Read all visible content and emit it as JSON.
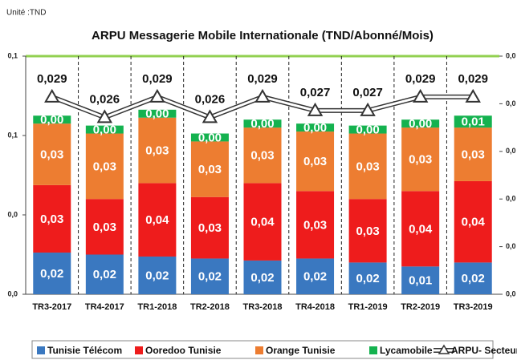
{
  "chart_data": {
    "type": "bar",
    "stacked": true,
    "unit_note": "Unité :TND",
    "title": "ARPU Messagerie Mobile Internationale (TND/Abonné/Mois)",
    "categories": [
      "TR3-2017",
      "TR4-2017",
      "TR1-2018",
      "TR2-2018",
      "TR3-2018",
      "TR4-2018",
      "TR1-2019",
      "TR2-2019",
      "TR3-2019"
    ],
    "ylim": [
      0,
      0.12
    ],
    "yticks": [
      {
        "value": 0,
        "label": "0,0"
      },
      {
        "value": 0.04,
        "label": "0,0"
      },
      {
        "value": 0.08,
        "label": "0,1"
      },
      {
        "value": 0.12,
        "label": "0,1"
      }
    ],
    "y2lim": [
      0,
      0.035
    ],
    "y2ticks": [
      {
        "value": 0,
        "label": "0,0"
      },
      {
        "value": 0.007,
        "label": "0,0"
      },
      {
        "value": 0.014,
        "label": "0,0"
      },
      {
        "value": 0.021,
        "label": "0,0"
      },
      {
        "value": 0.028,
        "label": "0,0"
      },
      {
        "value": 0.035,
        "label": "0,0"
      }
    ],
    "legend": "bottom",
    "series": [
      {
        "name": "Tunisie Télécom",
        "color": "#3a78c0",
        "values": [
          0.021,
          0.02,
          0.019,
          0.018,
          0.017,
          0.018,
          0.016,
          0.014,
          0.016
        ],
        "value_labels": [
          "0,02",
          "0,02",
          "0,02",
          "0,02",
          "0,02",
          "0,02",
          "0,02",
          "0,01",
          "0,02"
        ]
      },
      {
        "name": "Ooredoo Tunisie",
        "color": "#ee1c1c",
        "values": [
          0.034,
          0.028,
          0.037,
          0.031,
          0.039,
          0.034,
          0.032,
          0.038,
          0.041
        ],
        "value_labels": [
          "0,03",
          "0,03",
          "0,04",
          "0,03",
          "0,04",
          "0,03",
          "0,03",
          "0,04",
          "0,04"
        ]
      },
      {
        "name": "Orange Tunisie",
        "color": "#ed7d31",
        "values": [
          0.031,
          0.033,
          0.033,
          0.028,
          0.028,
          0.03,
          0.033,
          0.032,
          0.027
        ],
        "value_labels": [
          "0,03",
          "0,03",
          "0,03",
          "0,03",
          "0,03",
          "0,03",
          "0,03",
          "0,03",
          "0,03"
        ]
      },
      {
        "name": "Lycamobile",
        "color": "#14b24f",
        "values": [
          0.004,
          0.004,
          0.004,
          0.004,
          0.004,
          0.004,
          0.004,
          0.004,
          0.006
        ],
        "value_labels": [
          "0,00",
          "0,00",
          "0,00",
          "0,00",
          "0,00",
          "0,00",
          "0,00",
          "0,00",
          "0,01"
        ]
      },
      {
        "name": "ARPU- Secteur",
        "type": "line",
        "axis": "y2",
        "color": "#ffffff",
        "values": [
          0.029,
          0.026,
          0.029,
          0.026,
          0.029,
          0.027,
          0.027,
          0.029,
          0.029
        ],
        "value_labels": [
          "0,029",
          "0,026",
          "0,029",
          "0,026",
          "0,029",
          "0,027",
          "0,027",
          "0,029",
          "0,029"
        ]
      }
    ]
  }
}
